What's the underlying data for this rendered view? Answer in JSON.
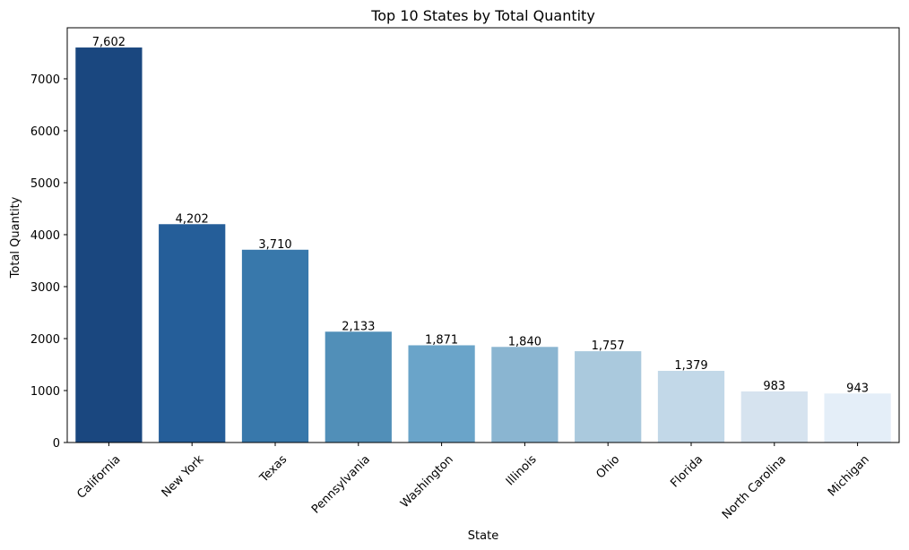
{
  "chart_data": {
    "type": "bar",
    "title": "Top 10 States by Total Quantity",
    "xlabel": "State",
    "ylabel": "Total Quantity",
    "categories": [
      "California",
      "New York",
      "Texas",
      "Pennsylvania",
      "Washington",
      "Illinois",
      "Ohio",
      "Florida",
      "North Carolina",
      "Michigan"
    ],
    "values": [
      7602,
      4202,
      3710,
      2133,
      1871,
      1840,
      1757,
      1379,
      983,
      943
    ],
    "data_labels": [
      "7,602",
      "4,202",
      "3,710",
      "2,133",
      "1,871",
      "1,840",
      "1,757",
      "1,379",
      "983",
      "943"
    ],
    "colors": [
      "#1a477f",
      "#255e99",
      "#3878ab",
      "#518fb8",
      "#6aa4c9",
      "#8ab5d1",
      "#aac9dd",
      "#c2d8e8",
      "#d6e3ef",
      "#e4eef8"
    ],
    "ylim": [
      0,
      7982
    ],
    "yticks": [
      0,
      1000,
      2000,
      3000,
      4000,
      5000,
      6000,
      7000
    ],
    "ytick_labels": [
      "0",
      "1000",
      "2000",
      "3000",
      "4000",
      "5000",
      "6000",
      "7000"
    ],
    "x_tick_rotation": 45,
    "grid": false,
    "legend": "none"
  }
}
